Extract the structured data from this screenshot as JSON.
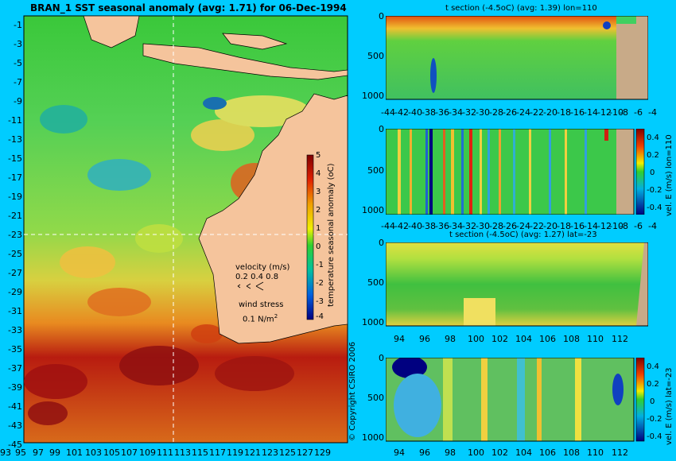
{
  "map": {
    "title": "BRAN_1  SST seasonal anomaly (avg: 1.71) for 06-Dec-1994",
    "lat_ticks": [
      "-1",
      "-3",
      "-5",
      "-7",
      "-9",
      "-11",
      "-13",
      "-15",
      "-17",
      "-19",
      "-21",
      "-23",
      "-25",
      "-27",
      "-29",
      "-31",
      "-33",
      "-35",
      "-37",
      "-39",
      "-41",
      "-43",
      "-45"
    ],
    "lon_ticks": [
      "93",
      "95",
      "97",
      "99",
      "101",
      "103",
      "105",
      "107",
      "109",
      "111",
      "113",
      "115",
      "117",
      "119",
      "121",
      "123",
      "125",
      "127",
      "129"
    ],
    "colorbar": {
      "label": "temperature seasonal anomaly (oC)",
      "ticks": [
        "5",
        "4",
        "3",
        "2",
        "1",
        "0",
        "-1",
        "-2",
        "-3",
        "-4"
      ]
    },
    "velocity_legend": {
      "title": "velocity (m/s)",
      "values": "0.2 0.4 0.8"
    },
    "wind_legend": {
      "title": "wind stress",
      "value": "0.1 N/m",
      "unit_sup": "2"
    },
    "copyright": "© Copyright CSIRO 2006"
  },
  "panels": [
    {
      "title": "t section (-4.5oC) (avg: 1.39) lon=110",
      "x_ticks": [
        "-44",
        "-42",
        "-40",
        "-38",
        "-36",
        "-34",
        "-32",
        "-30",
        "-28",
        "-26",
        "-24",
        "-22",
        "-20",
        "-18",
        "-16",
        "-14",
        "-12",
        "-10",
        "-8",
        "-6",
        "-4"
      ],
      "y_ticks": [
        "0",
        "500",
        "1000"
      ]
    },
    {
      "title": "",
      "x_ticks": [
        "-44",
        "-42",
        "-40",
        "-38",
        "-36",
        "-34",
        "-32",
        "-30",
        "-28",
        "-26",
        "-24",
        "-22",
        "-20",
        "-18",
        "-16",
        "-14",
        "-12",
        "-10",
        "-8",
        "-6",
        "-4"
      ],
      "y_ticks": [
        "0",
        "500",
        "1000"
      ],
      "colorbar_ticks": [
        "0.4",
        "0.2",
        "0",
        "-0.2",
        "-0.4"
      ],
      "colorbar_label": "vel. E (m/s) lon=110"
    },
    {
      "title": "t section (-4.5oC) (avg: 1.27) lat=-23",
      "x_ticks": [
        "94",
        "96",
        "98",
        "100",
        "102",
        "104",
        "106",
        "108",
        "110",
        "112"
      ],
      "y_ticks": [
        "0",
        "500",
        "1000"
      ]
    },
    {
      "title": "",
      "x_ticks": [
        "94",
        "96",
        "98",
        "100",
        "102",
        "104",
        "106",
        "108",
        "110",
        "112"
      ],
      "y_ticks": [
        "0",
        "500",
        "1000"
      ],
      "colorbar_ticks": [
        "0.4",
        "0.2",
        "0",
        "-0.2",
        "-0.4"
      ],
      "colorbar_label": "vel. E (m/s) lat=-23"
    }
  ]
}
